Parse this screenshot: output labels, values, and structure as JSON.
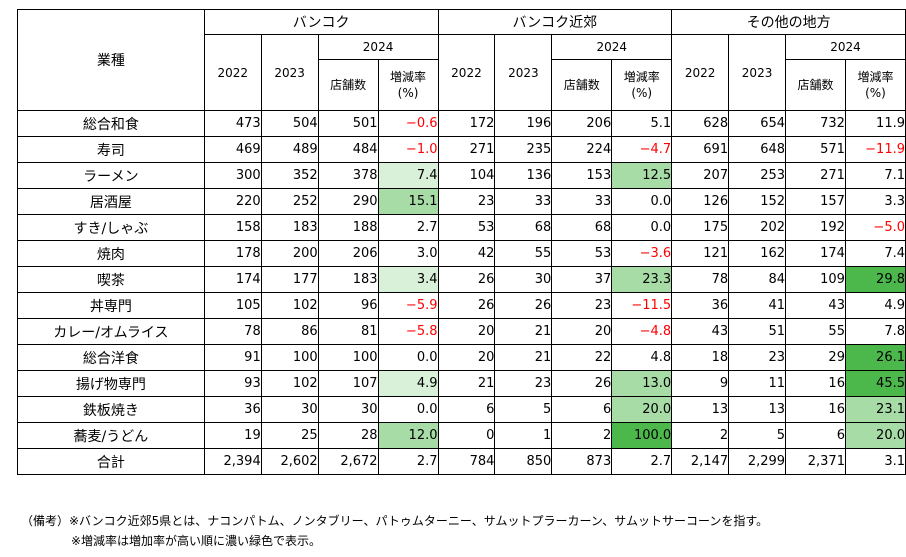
{
  "header": {
    "category_label": "業種",
    "groups": [
      "バンコク",
      "バンコク近郊",
      "その他の地方"
    ],
    "year1": "2022",
    "year2": "2023",
    "year3": "2024",
    "stores_label": "店舗数",
    "rate_label": "増減率",
    "rate_unit": "(%)"
  },
  "rows": [
    {
      "cat": "総合和食",
      "bkk": [
        "473",
        "504",
        "501",
        "−0.6"
      ],
      "sub": [
        "172",
        "196",
        "206",
        "5.1"
      ],
      "oth": [
        "628",
        "654",
        "732",
        "11.9"
      ]
    },
    {
      "cat": "寿司",
      "bkk": [
        "469",
        "489",
        "484",
        "−1.0"
      ],
      "sub": [
        "271",
        "235",
        "224",
        "−4.7"
      ],
      "oth": [
        "691",
        "648",
        "571",
        "−11.9"
      ]
    },
    {
      "cat": "ラーメン",
      "bkk": [
        "300",
        "352",
        "378",
        "7.4"
      ],
      "sub": [
        "104",
        "136",
        "153",
        "12.5"
      ],
      "oth": [
        "207",
        "253",
        "271",
        "7.1"
      ]
    },
    {
      "cat": "居酒屋",
      "bkk": [
        "220",
        "252",
        "290",
        "15.1"
      ],
      "sub": [
        "23",
        "33",
        "33",
        "0.0"
      ],
      "oth": [
        "126",
        "152",
        "157",
        "3.3"
      ]
    },
    {
      "cat": "すき/しゃぶ",
      "bkk": [
        "158",
        "183",
        "188",
        "2.7"
      ],
      "sub": [
        "53",
        "68",
        "68",
        "0.0"
      ],
      "oth": [
        "175",
        "202",
        "192",
        "−5.0"
      ]
    },
    {
      "cat": "焼肉",
      "bkk": [
        "178",
        "200",
        "206",
        "3.0"
      ],
      "sub": [
        "42",
        "55",
        "53",
        "−3.6"
      ],
      "oth": [
        "121",
        "162",
        "174",
        "7.4"
      ]
    },
    {
      "cat": "喫茶",
      "bkk": [
        "174",
        "177",
        "183",
        "3.4"
      ],
      "sub": [
        "26",
        "30",
        "37",
        "23.3"
      ],
      "oth": [
        "78",
        "84",
        "109",
        "29.8"
      ]
    },
    {
      "cat": "丼専門",
      "bkk": [
        "105",
        "102",
        "96",
        "−5.9"
      ],
      "sub": [
        "26",
        "26",
        "23",
        "−11.5"
      ],
      "oth": [
        "36",
        "41",
        "43",
        "4.9"
      ]
    },
    {
      "cat": "カレー/オムライス",
      "bkk": [
        "78",
        "86",
        "81",
        "−5.8"
      ],
      "sub": [
        "20",
        "21",
        "20",
        "−4.8"
      ],
      "oth": [
        "43",
        "51",
        "55",
        "7.8"
      ]
    },
    {
      "cat": "総合洋食",
      "bkk": [
        "91",
        "100",
        "100",
        "0.0"
      ],
      "sub": [
        "20",
        "21",
        "22",
        "4.8"
      ],
      "oth": [
        "18",
        "23",
        "29",
        "26.1"
      ]
    },
    {
      "cat": "揚げ物専門",
      "bkk": [
        "93",
        "102",
        "107",
        "4.9"
      ],
      "sub": [
        "21",
        "23",
        "26",
        "13.0"
      ],
      "oth": [
        "9",
        "11",
        "16",
        "45.5"
      ]
    },
    {
      "cat": "鉄板焼き",
      "bkk": [
        "36",
        "30",
        "30",
        "0.0"
      ],
      "sub": [
        "6",
        "5",
        "6",
        "20.0"
      ],
      "oth": [
        "13",
        "13",
        "16",
        "23.1"
      ]
    },
    {
      "cat": "蕎麦/うどん",
      "bkk": [
        "19",
        "25",
        "28",
        "12.0"
      ],
      "sub": [
        "0",
        "1",
        "2",
        "100.0"
      ],
      "oth": [
        "2",
        "5",
        "6",
        "20.0"
      ]
    },
    {
      "cat": "合計",
      "bkk": [
        "2,394",
        "2,602",
        "2,672",
        "2.7"
      ],
      "sub": [
        "784",
        "850",
        "873",
        "2.7"
      ],
      "oth": [
        "2,147",
        "2,299",
        "2,371",
        "3.1"
      ]
    }
  ],
  "notes": [
    "（備考）※バンコク近郊5県とは、ナコンパトム、ノンタブリー、パトゥムターニー、サムットプラーカーン、サムットサーコーンを指す。",
    "※増減率は増加率が高い順に濃い緑色で表示。"
  ],
  "colors": {
    "negative_text": "#ff0000",
    "green_light": "#d9f0d9",
    "green_mid": "#a7dca7",
    "green_dark": "#4cb84c"
  }
}
